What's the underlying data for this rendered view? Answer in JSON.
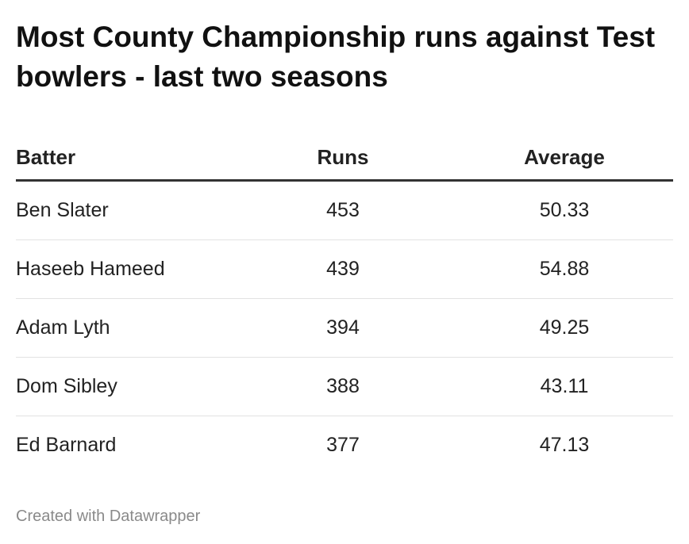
{
  "title": "Most County Championship runs against Test bowlers - last two seasons",
  "footer": "Created with Datawrapper",
  "chart_data": {
    "type": "table",
    "columns": [
      "Batter",
      "Runs",
      "Average"
    ],
    "rows": [
      {
        "batter": "Ben Slater",
        "runs": "453",
        "average": "50.33"
      },
      {
        "batter": "Haseeb Hameed",
        "runs": "439",
        "average": "54.88"
      },
      {
        "batter": "Adam Lyth",
        "runs": "394",
        "average": "49.25"
      },
      {
        "batter": "Dom Sibley",
        "runs": "388",
        "average": "43.11"
      },
      {
        "batter": "Ed Barnard",
        "runs": "377",
        "average": "47.13"
      }
    ]
  }
}
